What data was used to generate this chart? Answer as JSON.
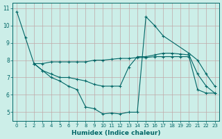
{
  "xlabel": "Humidex (Indice chaleur)",
  "background_color": "#cceee8",
  "grid_color": "#c0a8a8",
  "line_color": "#006666",
  "xlim": [
    -0.5,
    23.5
  ],
  "ylim": [
    4.5,
    11.3
  ],
  "xticks": [
    0,
    1,
    2,
    3,
    4,
    5,
    6,
    7,
    8,
    9,
    10,
    11,
    12,
    13,
    14,
    15,
    16,
    17,
    18,
    19,
    20,
    21,
    22,
    23
  ],
  "yticks": [
    5,
    6,
    7,
    8,
    9,
    10,
    11
  ],
  "series": [
    {
      "x": [
        0,
        1,
        2,
        3,
        4,
        5,
        6,
        7,
        8,
        9,
        10,
        11,
        12,
        13,
        14,
        15,
        16,
        17,
        20,
        21,
        22,
        23
      ],
      "y": [
        10.8,
        9.3,
        7.8,
        7.4,
        7.0,
        6.8,
        6.5,
        6.3,
        5.3,
        5.2,
        4.9,
        4.95,
        4.9,
        5.0,
        5.0,
        10.5,
        10.0,
        9.4,
        8.4,
        8.0,
        7.2,
        6.5
      ]
    },
    {
      "x": [
        2,
        3,
        4,
        5,
        6,
        7,
        8,
        9,
        10,
        11,
        12,
        13,
        14,
        15,
        16,
        17,
        18,
        19,
        20,
        21,
        22,
        23
      ],
      "y": [
        7.8,
        7.8,
        7.9,
        7.9,
        7.9,
        7.9,
        7.9,
        8.0,
        8.0,
        8.05,
        8.1,
        8.1,
        8.15,
        8.15,
        8.2,
        8.2,
        8.2,
        8.2,
        8.2,
        6.3,
        6.1,
        6.1
      ]
    },
    {
      "x": [
        2,
        3,
        4,
        5,
        6,
        7,
        8,
        9,
        10,
        11,
        12,
        13,
        14,
        15,
        16,
        17,
        18,
        19,
        20,
        21,
        22,
        23
      ],
      "y": [
        7.8,
        7.4,
        7.2,
        7.0,
        7.0,
        6.9,
        6.8,
        6.6,
        6.5,
        6.5,
        6.5,
        7.6,
        8.2,
        8.2,
        8.3,
        8.4,
        8.4,
        8.35,
        8.3,
        7.2,
        6.5,
        6.1
      ]
    }
  ]
}
